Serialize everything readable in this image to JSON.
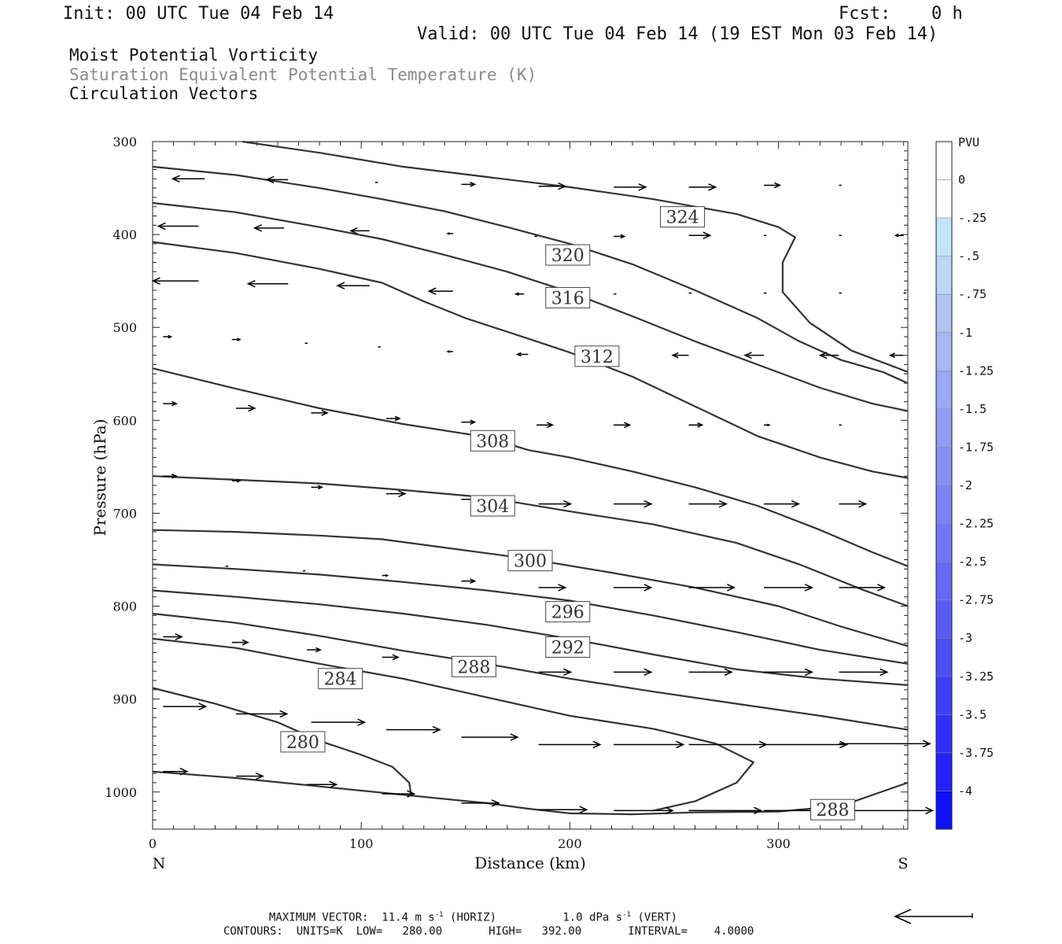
{
  "header": {
    "init": "Init: 00 UTC Tue 04 Feb 14",
    "fcst_label": "Fcst:",
    "fcst_value": "0 h",
    "valid": "Valid: 00 UTC Tue 04 Feb 14 (19 EST Mon 03 Feb 14)",
    "line1": "Moist Potential Vorticity",
    "line2": "Saturation Equivalent Potential Temperature (K)",
    "line3": "Circulation Vectors"
  },
  "footer": {
    "max_vector_label": "MAXIMUM VECTOR:",
    "max_horiz": "11.4 m s",
    "horiz_tag": "(HORIZ)",
    "max_vert": "1.0 dPa s",
    "vert_tag": "(VERT)",
    "exp": "-1",
    "contours": "CONTOURS:  UNITS=K  LOW=   280.00       HIGH=   392.00       INTERVAL=    4.0000"
  },
  "chart_data": {
    "type": "contour-cross-section",
    "xlabel": "Distance (km)",
    "ylabel": "Pressure (hPa)",
    "xlim": [
      0,
      362
    ],
    "ylim": [
      300,
      1040
    ],
    "x_ticks": [
      0,
      100,
      200,
      300
    ],
    "y_ticks": [
      300,
      400,
      500,
      600,
      700,
      800,
      900,
      1000
    ],
    "x_end_labels": {
      "left": "N",
      "right": "S"
    },
    "colorbar": {
      "title": "PVU",
      "labels": [
        "0",
        "-.25",
        "-.5",
        "-.75",
        "-1",
        "-1.25",
        "-1.5",
        "-1.75",
        "-2",
        "-2.25",
        "-2.5",
        "-2.75",
        "-3",
        "-3.25",
        "-3.5",
        "-3.75",
        "-4"
      ],
      "colors": [
        "#ffffff",
        "#ffffff",
        "#c4e6fa",
        "#bbd6f6",
        "#b0c4f4",
        "#a6b8f4",
        "#9aa9f4",
        "#909cf4",
        "#8590f4",
        "#7a83f4",
        "#6f77f4",
        "#646af4",
        "#585cf4",
        "#4b4ef6",
        "#3d3ff8",
        "#2f30fa",
        "#2222fc",
        "#0f0ffc"
      ]
    },
    "contours": [
      {
        "label": "324",
        "label_at": [
          254,
          381
        ],
        "points": [
          [
            43,
            300
          ],
          [
            80,
            312
          ],
          [
            120,
            327
          ],
          [
            160,
            338
          ],
          [
            200,
            349
          ],
          [
            240,
            362
          ],
          [
            280,
            378
          ],
          [
            300,
            392
          ],
          [
            308,
            403
          ],
          [
            302,
            430
          ],
          [
            302,
            462
          ],
          [
            315,
            495
          ],
          [
            335,
            525
          ],
          [
            362,
            548
          ]
        ]
      },
      {
        "label": "320",
        "label_at": [
          199,
          422
        ],
        "points": [
          [
            0,
            327
          ],
          [
            40,
            336
          ],
          [
            80,
            350
          ],
          [
            110,
            362
          ],
          [
            140,
            375
          ],
          [
            170,
            392
          ],
          [
            200,
            410
          ],
          [
            230,
            432
          ],
          [
            260,
            460
          ],
          [
            290,
            490
          ],
          [
            310,
            515
          ],
          [
            330,
            535
          ],
          [
            350,
            548
          ],
          [
            362,
            560
          ]
        ]
      },
      {
        "label": "316",
        "label_at": [
          199,
          468
        ],
        "points": [
          [
            0,
            366
          ],
          [
            40,
            376
          ],
          [
            80,
            392
          ],
          [
            110,
            405
          ],
          [
            140,
            422
          ],
          [
            170,
            440
          ],
          [
            200,
            462
          ],
          [
            230,
            488
          ],
          [
            260,
            515
          ],
          [
            290,
            540
          ],
          [
            320,
            565
          ],
          [
            345,
            582
          ],
          [
            362,
            590
          ]
        ]
      },
      {
        "label": "312",
        "label_at": [
          213,
          531
        ],
        "points": [
          [
            0,
            408
          ],
          [
            40,
            420
          ],
          [
            80,
            437
          ],
          [
            110,
            452
          ],
          [
            130,
            472
          ],
          [
            150,
            490
          ],
          [
            180,
            512
          ],
          [
            200,
            527
          ],
          [
            230,
            553
          ],
          [
            260,
            585
          ],
          [
            290,
            617
          ],
          [
            320,
            640
          ],
          [
            345,
            655
          ],
          [
            362,
            662
          ]
        ]
      },
      {
        "label": "308",
        "label_at": [
          163,
          622
        ],
        "points": [
          [
            0,
            544
          ],
          [
            40,
            566
          ],
          [
            80,
            587
          ],
          [
            120,
            604
          ],
          [
            160,
            618
          ],
          [
            180,
            632
          ],
          [
            200,
            640
          ],
          [
            230,
            655
          ],
          [
            260,
            672
          ],
          [
            290,
            692
          ],
          [
            320,
            718
          ],
          [
            345,
            742
          ],
          [
            362,
            757
          ]
        ]
      },
      {
        "label": "304",
        "label_at": [
          163,
          692
        ],
        "points": [
          [
            0,
            660
          ],
          [
            40,
            664
          ],
          [
            80,
            668
          ],
          [
            120,
            675
          ],
          [
            160,
            683
          ],
          [
            200,
            698
          ],
          [
            240,
            712
          ],
          [
            280,
            732
          ],
          [
            310,
            755
          ],
          [
            340,
            782
          ],
          [
            362,
            800
          ]
        ]
      },
      {
        "label": "300",
        "label_at": [
          181,
          751
        ],
        "points": [
          [
            0,
            718
          ],
          [
            40,
            720
          ],
          [
            80,
            724
          ],
          [
            110,
            728
          ],
          [
            140,
            737
          ],
          [
            180,
            749
          ],
          [
            220,
            764
          ],
          [
            260,
            780
          ],
          [
            300,
            800
          ],
          [
            330,
            822
          ],
          [
            362,
            843
          ]
        ]
      },
      {
        "label": "296",
        "label_at": [
          199,
          806
        ],
        "points": [
          [
            0,
            755
          ],
          [
            40,
            760
          ],
          [
            80,
            766
          ],
          [
            120,
            774
          ],
          [
            160,
            783
          ],
          [
            200,
            794
          ],
          [
            240,
            810
          ],
          [
            280,
            828
          ],
          [
            320,
            847
          ],
          [
            362,
            862
          ]
        ]
      },
      {
        "label": "292",
        "label_at": [
          199,
          844
        ],
        "points": [
          [
            0,
            783
          ],
          [
            40,
            790
          ],
          [
            80,
            798
          ],
          [
            120,
            808
          ],
          [
            160,
            820
          ],
          [
            200,
            835
          ],
          [
            240,
            852
          ],
          [
            280,
            868
          ],
          [
            320,
            878
          ],
          [
            362,
            885
          ]
        ]
      },
      {
        "label": "288",
        "label_at": [
          154,
          865
        ],
        "points": [
          [
            0,
            808
          ],
          [
            40,
            818
          ],
          [
            80,
            832
          ],
          [
            120,
            848
          ],
          [
            160,
            862
          ],
          [
            200,
            878
          ],
          [
            240,
            892
          ],
          [
            280,
            905
          ],
          [
            320,
            918
          ],
          [
            362,
            933
          ]
        ]
      },
      {
        "label": "284",
        "label_at": [
          90,
          878
        ],
        "points": [
          [
            0,
            835
          ],
          [
            40,
            845
          ],
          [
            80,
            862
          ],
          [
            120,
            878
          ],
          [
            160,
            898
          ],
          [
            200,
            918
          ],
          [
            240,
            932
          ],
          [
            270,
            948
          ],
          [
            288,
            968
          ],
          [
            280,
            990
          ],
          [
            260,
            1010
          ],
          [
            240,
            1020
          ]
        ]
      },
      {
        "label": "280",
        "label_at": [
          72,
          946
        ],
        "points": [
          [
            0,
            888
          ],
          [
            30,
            905
          ],
          [
            60,
            925
          ],
          [
            80,
            945
          ],
          [
            100,
            960
          ],
          [
            115,
            973
          ],
          [
            123,
            990
          ],
          [
            124,
            1004
          ]
        ]
      },
      {
        "label": "288",
        "label_at": [
          326,
          1019
        ],
        "points": [
          [
            0,
            978
          ],
          [
            40,
            985
          ],
          [
            80,
            994
          ],
          [
            120,
            1003
          ],
          [
            160,
            1012
          ],
          [
            180,
            1018
          ],
          [
            200,
            1023
          ],
          [
            230,
            1024
          ],
          [
            260,
            1022
          ],
          [
            300,
            1021
          ],
          [
            330,
            1015
          ],
          [
            362,
            990
          ]
        ]
      }
    ],
    "vectors": [
      {
        "x": 25,
        "p": 340,
        "u": -12
      },
      {
        "x": 65,
        "p": 341,
        "u": -8
      },
      {
        "x": 108,
        "p": 344,
        "u": -1
      },
      {
        "x": 148,
        "p": 346,
        "u": 5
      },
      {
        "x": 185,
        "p": 348,
        "u": 10
      },
      {
        "x": 221,
        "p": 349,
        "u": 12
      },
      {
        "x": 257,
        "p": 349,
        "u": 10
      },
      {
        "x": 293,
        "p": 347,
        "u": 6
      },
      {
        "x": 329,
        "p": 347,
        "u": 1
      },
      {
        "x": 22,
        "p": 391,
        "u": -15
      },
      {
        "x": 63,
        "p": 393,
        "u": -11
      },
      {
        "x": 104,
        "p": 396,
        "u": -7
      },
      {
        "x": 144,
        "p": 399,
        "u": -2
      },
      {
        "x": 183,
        "p": 402,
        "u": 1
      },
      {
        "x": 221,
        "p": 402,
        "u": 4
      },
      {
        "x": 257,
        "p": 401,
        "u": 8
      },
      {
        "x": 293,
        "p": 401,
        "u": 1
      },
      {
        "x": 329,
        "p": 401,
        "u": 1
      },
      {
        "x": 360,
        "p": 401,
        "u": -3
      },
      {
        "x": 22,
        "p": 450,
        "u": -17
      },
      {
        "x": 65,
        "p": 453,
        "u": -15
      },
      {
        "x": 104,
        "p": 455,
        "u": -12
      },
      {
        "x": 144,
        "p": 461,
        "u": -9
      },
      {
        "x": 178,
        "p": 464,
        "u": -3
      },
      {
        "x": 221,
        "p": 464,
        "u": 1
      },
      {
        "x": 257,
        "p": 463,
        "u": 1
      },
      {
        "x": 293,
        "p": 463,
        "u": 1
      },
      {
        "x": 329,
        "p": 463,
        "u": 1
      },
      {
        "x": 360,
        "p": 463,
        "u": 1
      },
      {
        "x": 5,
        "p": 510,
        "u": 3
      },
      {
        "x": 38,
        "p": 513,
        "u": 3
      },
      {
        "x": 73,
        "p": 517,
        "u": 1
      },
      {
        "x": 108,
        "p": 521,
        "u": 1
      },
      {
        "x": 144,
        "p": 526,
        "u": -2
      },
      {
        "x": 180,
        "p": 529,
        "u": -4
      },
      {
        "x": 221,
        "p": 530,
        "u": -5
      },
      {
        "x": 257,
        "p": 530,
        "u": -6
      },
      {
        "x": 293,
        "p": 530,
        "u": -7
      },
      {
        "x": 329,
        "p": 530,
        "u": -7
      },
      {
        "x": 360,
        "p": 530,
        "u": -5
      },
      {
        "x": 5,
        "p": 582,
        "u": 5
      },
      {
        "x": 40,
        "p": 587,
        "u": 7
      },
      {
        "x": 76,
        "p": 592,
        "u": 6
      },
      {
        "x": 112,
        "p": 598,
        "u": 5
      },
      {
        "x": 148,
        "p": 602,
        "u": 5
      },
      {
        "x": 184,
        "p": 605,
        "u": 6
      },
      {
        "x": 221,
        "p": 605,
        "u": 6
      },
      {
        "x": 257,
        "p": 605,
        "u": 5
      },
      {
        "x": 293,
        "p": 605,
        "u": 2
      },
      {
        "x": 329,
        "p": 605,
        "u": 1
      },
      {
        "x": 5,
        "p": 660,
        "u": 5
      },
      {
        "x": 38,
        "p": 665,
        "u": 3
      },
      {
        "x": 76,
        "p": 672,
        "u": 4
      },
      {
        "x": 112,
        "p": 679,
        "u": 7
      },
      {
        "x": 148,
        "p": 685,
        "u": 9
      },
      {
        "x": 185,
        "p": 690,
        "u": 12
      },
      {
        "x": 221,
        "p": 690,
        "u": 14
      },
      {
        "x": 257,
        "p": 690,
        "u": 14
      },
      {
        "x": 293,
        "p": 690,
        "u": 13
      },
      {
        "x": 329,
        "p": 690,
        "u": 10
      },
      {
        "x": 35,
        "p": 757,
        "u": 1
      },
      {
        "x": 72,
        "p": 762,
        "u": 1
      },
      {
        "x": 110,
        "p": 767,
        "u": 2
      },
      {
        "x": 148,
        "p": 773,
        "u": 5
      },
      {
        "x": 185,
        "p": 780,
        "u": 10
      },
      {
        "x": 221,
        "p": 780,
        "u": 14
      },
      {
        "x": 257,
        "p": 780,
        "u": 17
      },
      {
        "x": 293,
        "p": 780,
        "u": 18
      },
      {
        "x": 329,
        "p": 780,
        "u": 17
      },
      {
        "x": 5,
        "p": 833,
        "u": 7
      },
      {
        "x": 38,
        "p": 839,
        "u": 6
      },
      {
        "x": 74,
        "p": 847,
        "u": 5
      },
      {
        "x": 110,
        "p": 855,
        "u": 6
      },
      {
        "x": 148,
        "p": 863,
        "u": 10
      },
      {
        "x": 185,
        "p": 871,
        "u": 12
      },
      {
        "x": 221,
        "p": 871,
        "u": 14
      },
      {
        "x": 257,
        "p": 871,
        "u": 16
      },
      {
        "x": 293,
        "p": 871,
        "u": 18
      },
      {
        "x": 329,
        "p": 871,
        "u": 18
      },
      {
        "x": 5,
        "p": 908,
        "u": 16
      },
      {
        "x": 40,
        "p": 916,
        "u": 19
      },
      {
        "x": 76,
        "p": 925,
        "u": 20
      },
      {
        "x": 112,
        "p": 933,
        "u": 20
      },
      {
        "x": 148,
        "p": 941,
        "u": 21
      },
      {
        "x": 185,
        "p": 949,
        "u": 23
      },
      {
        "x": 221,
        "p": 949,
        "u": 26
      },
      {
        "x": 257,
        "p": 949,
        "u": 29
      },
      {
        "x": 293,
        "p": 949,
        "u": 31
      },
      {
        "x": 329,
        "p": 948,
        "u": 34
      },
      {
        "x": 5,
        "p": 978,
        "u": 9
      },
      {
        "x": 40,
        "p": 983,
        "u": 10
      },
      {
        "x": 74,
        "p": 992,
        "u": 11
      },
      {
        "x": 110,
        "p": 1002,
        "u": 12
      },
      {
        "x": 148,
        "p": 1012,
        "u": 14
      },
      {
        "x": 185,
        "p": 1019,
        "u": 18
      },
      {
        "x": 221,
        "p": 1020,
        "u": 22
      },
      {
        "x": 257,
        "p": 1020,
        "u": 27
      },
      {
        "x": 293,
        "p": 1020,
        "u": 32
      },
      {
        "x": 329,
        "p": 1020,
        "u": 35
      }
    ],
    "ref_vector_u": -11.4
  }
}
